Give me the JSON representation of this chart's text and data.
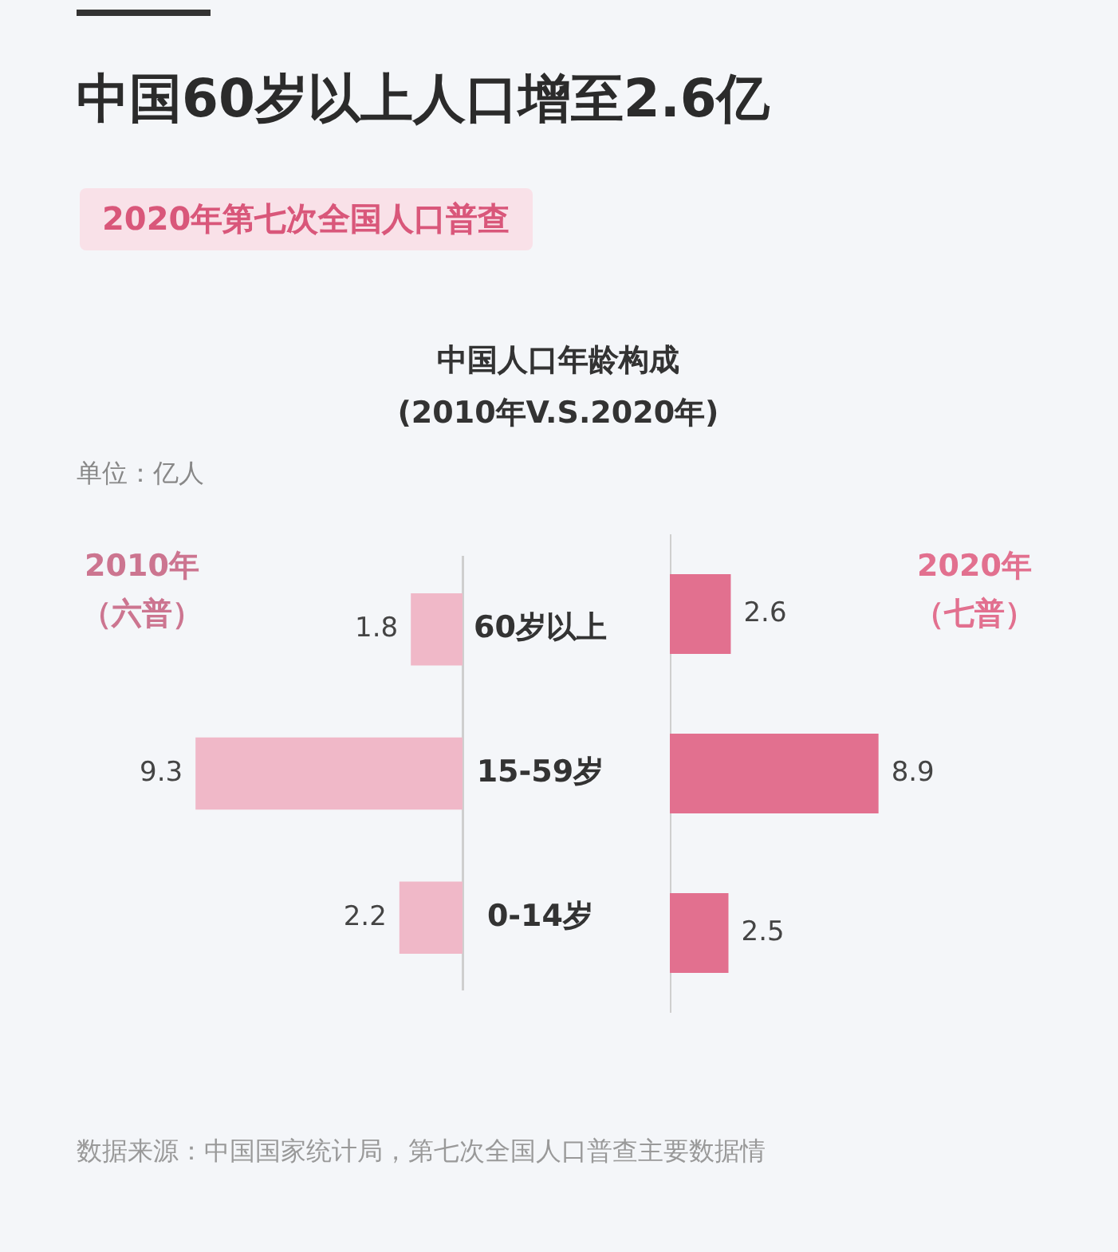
{
  "chart_data": [
    {
      "type": "bar",
      "orientation": "horizontal",
      "title": "中国60岁以上人口增至2.6亿",
      "subtitle": "2020年第七次全国人口普查",
      "annotations": [
        "中国人口年龄构成\n(2010年V.S.2020年)",
        "单位：亿人",
        "数据来源：中国国家统计局，第七次全国人口普查主要数据情"
      ],
      "categories": [
        "60岁以上",
        "15-59岁",
        "0-14岁"
      ],
      "series": [
        {
          "name": "2010年（六普）",
          "color": "#f0b8c8",
          "values": [
            1.8,
            9.3,
            2.2
          ]
        }
      ],
      "data_labels": true,
      "tick_labels": "y",
      "legend": "top left"
    },
    {
      "type": "bar",
      "orientation": "horizontal",
      "categories": [
        null,
        null,
        null
      ],
      "series": [
        {
          "name": "2020年（七普）",
          "color": "#e2708f",
          "values": [
            2.6,
            8.9,
            2.5
          ]
        }
      ],
      "data_labels": true,
      "tick_labels": false,
      "legend": "top right"
    }
  ]
}
